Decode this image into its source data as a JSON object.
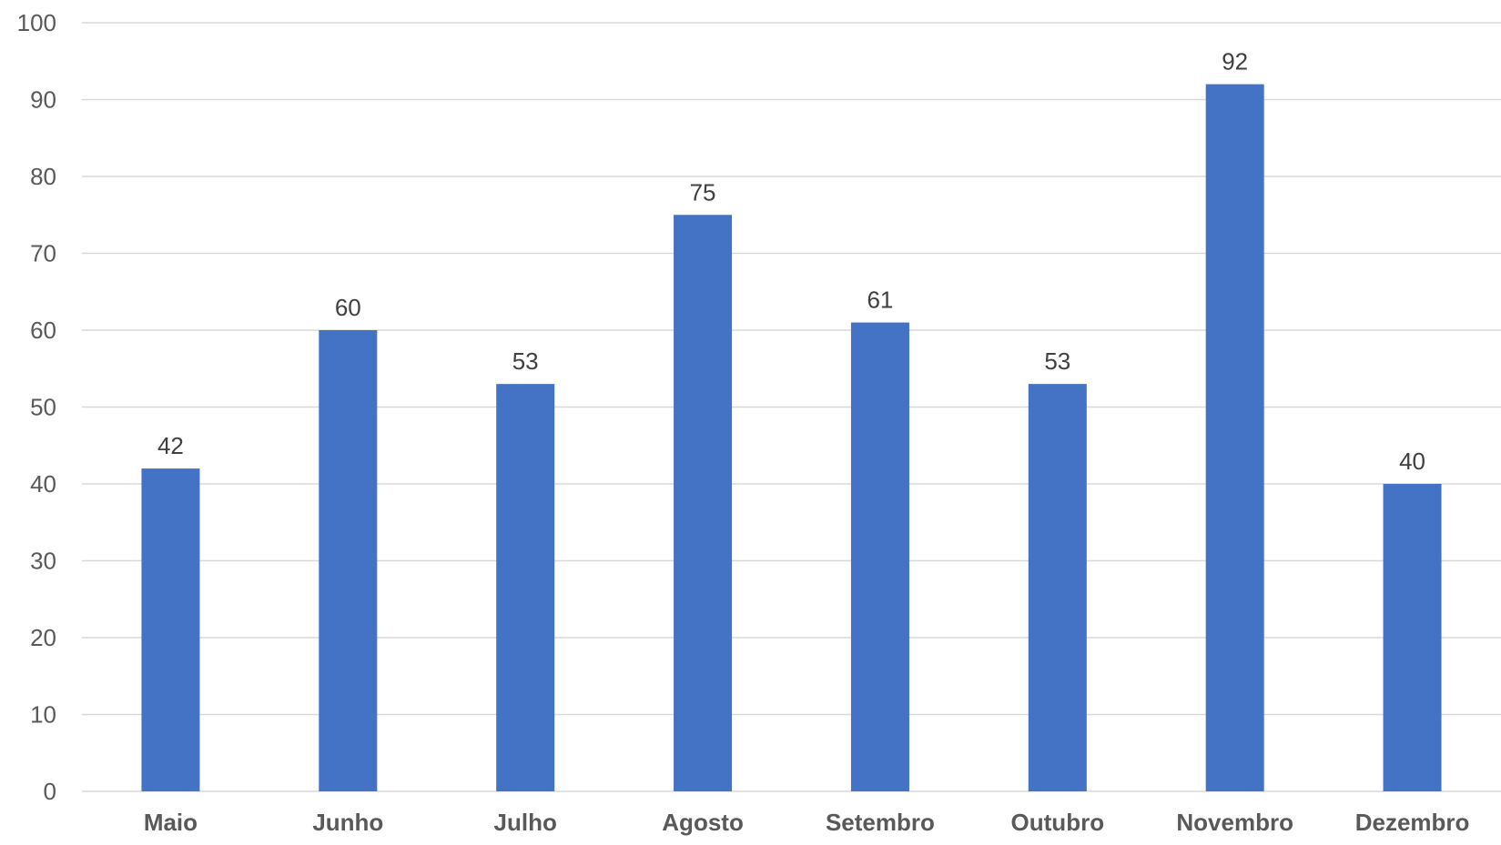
{
  "chart_data": {
    "type": "bar",
    "title": "",
    "xlabel": "",
    "ylabel": "",
    "categories": [
      "Maio",
      "Junho",
      "Julho",
      "Agosto",
      "Setembro",
      "Outubro",
      "Novembro",
      "Dezembro"
    ],
    "values": [
      42,
      60,
      53,
      75,
      61,
      53,
      92,
      40
    ],
    "ylim": [
      0,
      100
    ],
    "yticks": [
      0,
      10,
      20,
      30,
      40,
      50,
      60,
      70,
      80,
      90,
      100
    ],
    "grid": true,
    "data_labels": true,
    "legend": "none",
    "bar_color": "#4472C4"
  }
}
